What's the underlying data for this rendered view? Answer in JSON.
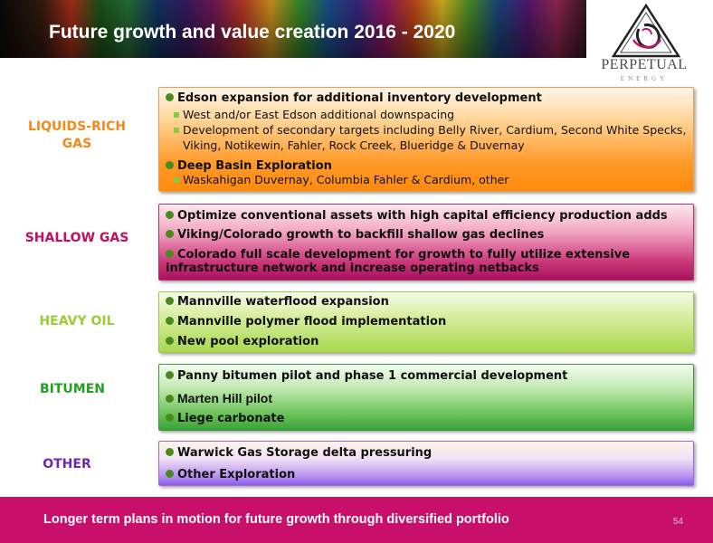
{
  "title": "Future growth and value creation 2016 - 2020",
  "logo": {
    "name": "PERPETUAL",
    "tagline": "ENERGY"
  },
  "colors": {
    "liquids_rich": "#f28a1a",
    "shallow_gas": "#c0105f",
    "heavy_oil": "#9acd32",
    "bitumen": "#22a022",
    "other": "#6a2ab0",
    "footer": "#c8106a"
  },
  "sections": [
    {
      "category": "LIQUIDS-RICH GAS",
      "category_lines": [
        "LIQUIDS-RICH",
        "GAS"
      ],
      "items": [
        {
          "text": "Edson expansion for additional inventory development",
          "subitems": [
            "West and/or East Edson additional downspacing",
            "Development of secondary targets including Belly River, Cardium, Second White Specks, Viking, Notikewin, Fahler, Rock Creek, Blueridge & Duvernay"
          ]
        },
        {
          "text": "Deep Basin Exploration",
          "subitems": [
            "Waskahigan Duvernay, Columbia Fahler & Cardium, other"
          ]
        }
      ]
    },
    {
      "category": "SHALLOW GAS",
      "items": [
        "Optimize conventional assets with high capital efficiency production adds",
        "Viking/Colorado growth to backfill shallow gas declines",
        "Colorado full scale development for growth to fully utilize extensive infrastructure network and increase operating netbacks"
      ]
    },
    {
      "category": "HEAVY OIL",
      "items": [
        "Mannville waterflood expansion",
        "Mannville polymer flood implementation",
        "New pool exploration"
      ]
    },
    {
      "category": "BITUMEN",
      "items": [
        "Panny bitumen pilot and phase 1 commercial development",
        "Marten Hill pilot",
        "Liege carbonate"
      ]
    },
    {
      "category": "OTHER",
      "items": [
        "Warwick Gas Storage delta pressuring",
        "Other Exploration"
      ]
    }
  ],
  "footer": {
    "text": "Longer term plans  in motion for future growth through diversified portfolio",
    "page_number": "54"
  }
}
